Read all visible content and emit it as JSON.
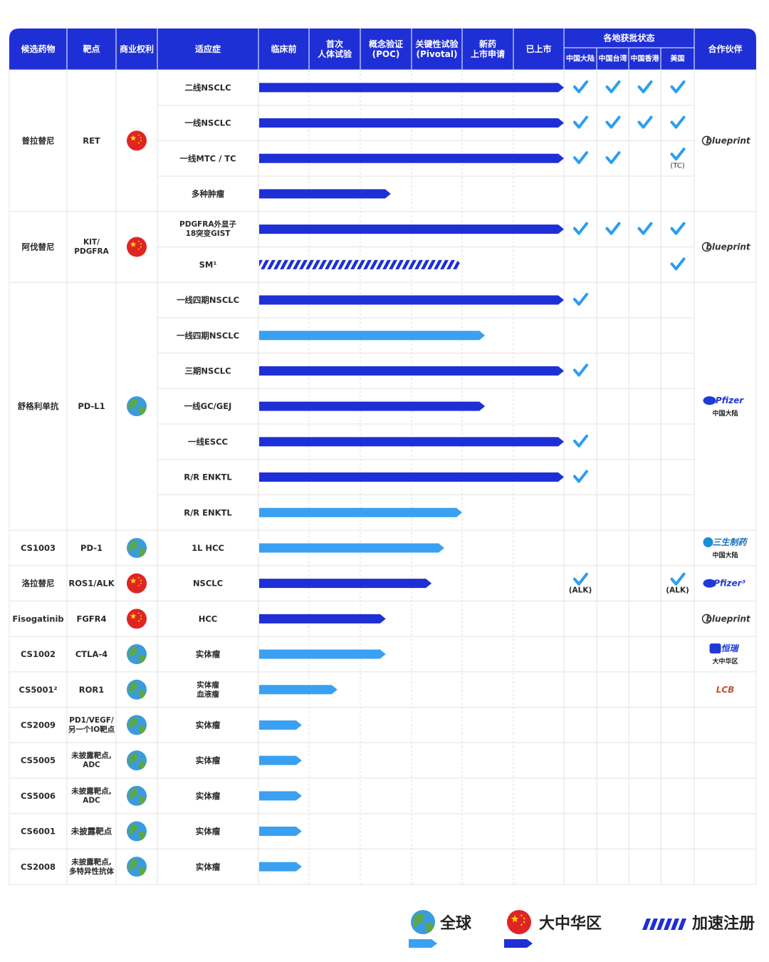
{
  "colors": {
    "header": "#1f2fd6",
    "bar_china": "#1f2fd6",
    "bar_global": "#3aa0f2",
    "check": "#2b9ef0",
    "grid": "#e3e3e3",
    "china_flag": "#e02424",
    "globe_sea": "#3a9be0",
    "globe_land": "#5aa84a"
  },
  "header": {
    "columns": [
      "候选药物",
      "靶点",
      "商业权利",
      "适应症"
    ],
    "stages": [
      "临床前",
      "首次\n人体试验",
      "概念验证\n(POC)",
      "关键性试验\n(Pivotal)",
      "新药\n上市申请",
      "已上市"
    ],
    "approval_group": "各地获批状态",
    "regions": [
      "中国大陆",
      "中国台湾",
      "中国香港",
      "美国"
    ],
    "partner": "合作伙伴"
  },
  "chart_data": {
    "type": "bar",
    "title": "",
    "stage_axis": [
      "临床前",
      "首次人体试验",
      "概念验证(POC)",
      "关键性试验(Pivotal)",
      "新药上市申请",
      "已上市"
    ],
    "progress_unit": "stages completed (0-6)",
    "rows": [
      {
        "indication": "二线NSCLC",
        "progress": 6.0,
        "scope": "china",
        "approvals": [
          "check",
          "check",
          "check",
          "check"
        ]
      },
      {
        "indication": "一线NSCLC",
        "progress": 6.0,
        "scope": "china",
        "approvals": [
          "check",
          "check",
          "check",
          "check"
        ]
      },
      {
        "indication": "一线MTC / TC",
        "progress": 6.0,
        "scope": "china",
        "approvals": [
          "check",
          "check",
          "",
          "check:(TC)"
        ]
      },
      {
        "indication": "多种肿瘤",
        "progress": 2.6,
        "scope": "china",
        "approvals": [
          "",
          "",
          "",
          ""
        ]
      },
      {
        "indication": "PDGFRA外显子\n18突变GIST",
        "progress": 6.0,
        "scope": "china",
        "approvals": [
          "check",
          "check",
          "check",
          "check"
        ]
      },
      {
        "indication": "SM¹",
        "progress": 4.0,
        "scope": "accelerated",
        "approvals": [
          "",
          "",
          "",
          "check"
        ]
      },
      {
        "indication": "一线四期NSCLC",
        "progress": 6.0,
        "scope": "china",
        "approvals": [
          "check",
          "",
          "",
          ""
        ]
      },
      {
        "indication": "一线四期NSCLC",
        "progress": 4.45,
        "scope": "global",
        "approvals": [
          "",
          "",
          "",
          ""
        ]
      },
      {
        "indication": "三期NSCLC",
        "progress": 6.0,
        "scope": "china",
        "approvals": [
          "check",
          "",
          "",
          ""
        ]
      },
      {
        "indication": "一线GC/GEJ",
        "progress": 4.45,
        "scope": "china",
        "approvals": [
          "",
          "",
          "",
          ""
        ]
      },
      {
        "indication": "一线ESCC",
        "progress": 6.0,
        "scope": "china",
        "approvals": [
          "check",
          "",
          "",
          ""
        ]
      },
      {
        "indication": "R/R ENKTL",
        "progress": 6.0,
        "scope": "china",
        "approvals": [
          "check",
          "",
          "",
          ""
        ]
      },
      {
        "indication": "R/R ENKTL",
        "progress": 4.0,
        "scope": "global",
        "approvals": [
          "",
          "",
          "",
          ""
        ]
      },
      {
        "indication": "1L HCC",
        "progress": 3.65,
        "scope": "global",
        "approvals": [
          "",
          "",
          "",
          ""
        ]
      },
      {
        "indication": "NSCLC",
        "progress": 3.4,
        "scope": "china",
        "approvals": [
          "check:(ALK)",
          "",
          "",
          "check:(ALK)"
        ]
      },
      {
        "indication": "HCC",
        "progress": 2.5,
        "scope": "china",
        "approvals": [
          "",
          "",
          "",
          ""
        ]
      },
      {
        "indication": "实体瘤",
        "progress": 2.5,
        "scope": "global",
        "approvals": [
          "",
          "",
          "",
          ""
        ]
      },
      {
        "indication": "实体瘤\n血液瘤",
        "progress": 1.55,
        "scope": "global",
        "approvals": [
          "",
          "",
          "",
          ""
        ]
      },
      {
        "indication": "实体瘤",
        "progress": 0.85,
        "scope": "global",
        "approvals": [
          "",
          "",
          "",
          ""
        ]
      },
      {
        "indication": "实体瘤",
        "progress": 0.85,
        "scope": "global",
        "approvals": [
          "",
          "",
          "",
          ""
        ]
      },
      {
        "indication": "实体瘤",
        "progress": 0.85,
        "scope": "global",
        "approvals": [
          "",
          "",
          "",
          ""
        ]
      },
      {
        "indication": "实体瘤",
        "progress": 0.85,
        "scope": "global",
        "approvals": [
          "",
          "",
          "",
          ""
        ]
      },
      {
        "indication": "实体瘤",
        "progress": 0.85,
        "scope": "global",
        "approvals": [
          "",
          "",
          "",
          ""
        ]
      }
    ],
    "legend": [
      {
        "label": "全球",
        "scope": "global"
      },
      {
        "label": "大中华区",
        "scope": "china"
      },
      {
        "label": "加速注册",
        "scope": "accelerated"
      }
    ]
  },
  "drugs": [
    {
      "name": "普拉替尼",
      "target": "RET",
      "rights": "china",
      "rows": 4,
      "partner": "blueprint",
      "partner_sub": ""
    },
    {
      "name": "阿伐替尼",
      "target": "KIT/\nPDGFRA",
      "rights": "china",
      "rows": 2,
      "partner": "blueprint",
      "partner_sub": ""
    },
    {
      "name": "舒格利单抗",
      "target": "PD-L1",
      "rights": "global",
      "rows": 7,
      "partner": "Pfizer",
      "partner_sub": "中国大陆"
    },
    {
      "name": "CS1003",
      "target": "PD-1",
      "rights": "global",
      "rows": 1,
      "partner": "三生制药",
      "partner_sub": "中国大陆"
    },
    {
      "name": "洛拉替尼",
      "target": "ROS1/ALK",
      "rights": "china",
      "rows": 1,
      "partner": "Pfizer³",
      "partner_sub": ""
    },
    {
      "name": "Fisogatinib",
      "target": "FGFR4",
      "rights": "china",
      "rows": 1,
      "partner": "blueprint",
      "partner_sub": ""
    },
    {
      "name": "CS1002",
      "target": "CTLA-4",
      "rights": "global",
      "rows": 1,
      "partner": "恒瑞",
      "partner_sub": "大中华区"
    },
    {
      "name": "CS5001²",
      "target": "ROR1",
      "rights": "global",
      "rows": 1,
      "partner": "LCB",
      "partner_sub": ""
    },
    {
      "name": "CS2009",
      "target": "PD1/VEGF/\n另一个IO靶点",
      "rights": "global",
      "rows": 1,
      "partner": "",
      "partner_sub": ""
    },
    {
      "name": "CS5005",
      "target": "未披露靶点,\nADC",
      "rights": "global",
      "rows": 1,
      "partner": "",
      "partner_sub": ""
    },
    {
      "name": "CS5006",
      "target": "未披露靶点,\nADC",
      "rights": "global",
      "rows": 1,
      "partner": "",
      "partner_sub": ""
    },
    {
      "name": "CS6001",
      "target": "未披露靶点",
      "rights": "global",
      "rows": 1,
      "partner": "",
      "partner_sub": ""
    },
    {
      "name": "CS2008",
      "target": "未披露靶点,\n多特异性抗体",
      "rights": "global",
      "rows": 1,
      "partner": "",
      "partner_sub": ""
    }
  ]
}
